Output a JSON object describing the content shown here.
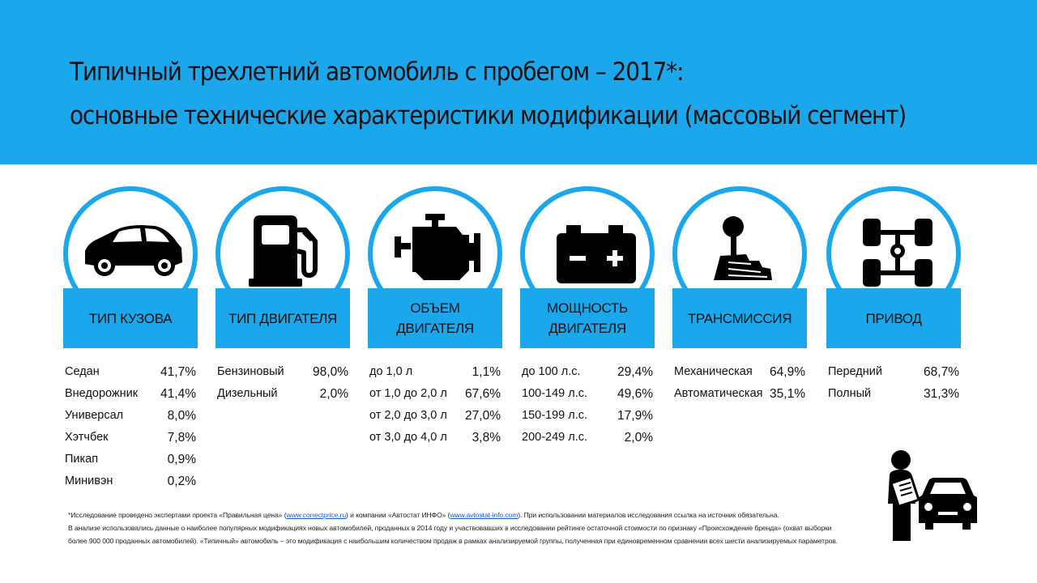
{
  "header": {
    "line1": "Типичный трехлетний автомобиль с пробегом – 2017*:",
    "line2": "основные технические характеристики модификации (массовый сегмент)",
    "bg_color": "#1aa7ec"
  },
  "columns": [
    {
      "icon": "car-icon",
      "label": "ТИП КУЗОВА",
      "rows": [
        {
          "name": "Седан",
          "value": "41,7%"
        },
        {
          "name": "Внедорожник",
          "value": "41,4%"
        },
        {
          "name": "Универсал",
          "value": "8,0%"
        },
        {
          "name": "Хэтчбек",
          "value": "7,8%"
        },
        {
          "name": "Пикап",
          "value": "0,9%"
        },
        {
          "name": "Минивэн",
          "value": "0,2%"
        }
      ]
    },
    {
      "icon": "fuel-pump-icon",
      "label": "ТИП ДВИГАТЕЛЯ",
      "rows": [
        {
          "name": "Бензиновый",
          "value": "98,0%"
        },
        {
          "name": "Дизельный",
          "value": "2,0%"
        }
      ]
    },
    {
      "icon": "engine-icon",
      "label": "ОБЪЕМ ДВИГАТЕЛЯ",
      "rows": [
        {
          "name": "до 1,0 л",
          "value": "1,1%"
        },
        {
          "name": "от 1,0 до 2,0 л",
          "value": "67,6%"
        },
        {
          "name": "от 2,0 до 3,0 л",
          "value": "27,0%"
        },
        {
          "name": "от 3,0 до 4,0 л",
          "value": "3,8%"
        }
      ]
    },
    {
      "icon": "battery-icon",
      "label": "МОЩНОСТЬ ДВИГАТЕЛЯ",
      "rows": [
        {
          "name": "до 100 л.с.",
          "value": "29,4%"
        },
        {
          "name": "100-149 л.с.",
          "value": "49,6%"
        },
        {
          "name": "150-199 л.с.",
          "value": "17,9%"
        },
        {
          "name": "200-249 л.с.",
          "value": "2,0%"
        }
      ]
    },
    {
      "icon": "gear-shift-icon",
      "label": "ТРАНСМИССИЯ",
      "rows": [
        {
          "name": "Механическая",
          "value": "64,9%"
        },
        {
          "name": "Автоматическая",
          "value": "35,1%"
        }
      ]
    },
    {
      "icon": "drivetrain-icon",
      "label": "ПРИВОД",
      "rows": [
        {
          "name": "Передний",
          "value": "68,7%"
        },
        {
          "name": "Полный",
          "value": "31,3%"
        }
      ]
    }
  ],
  "footnote": {
    "l1_a": "*Исследование проведено экспертами проекта «Правильная цена» (",
    "l1_link1": "www.correctprice.ru",
    "l1_b": ") и компании «Автостат ИНФО» (",
    "l1_link2": "www.avtostat-info.com",
    "l1_c": "). При использовании материалов исследования ссылка на источник обязательна.",
    "line2": "В анализе использовались данные о наиболее популярных модификациях новых автомобилей, проданных в 2014 году и участвовавших в исследовании рейтинге остаточной стоимости по признаку «Происхождение бренда» (охват выборки",
    "line3": "более 900 000 проданных автомобилей). «Типичный» автомобиль – это модификация с наибольшим количеством продаж в рамках анализируемой группы, полученная при единовременном сравнении всех шести анализируемых параметров."
  },
  "decor": {
    "icon": "car-inspector-icon"
  }
}
